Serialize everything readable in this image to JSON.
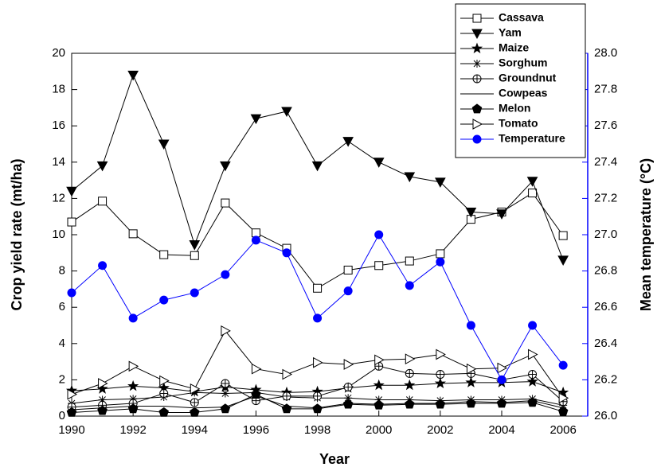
{
  "chart_data": {
    "type": "line",
    "x_label": "Year",
    "y_label": "Crop yield rate (mt/ha)",
    "y2_label": "Mean temperature (°C)",
    "x": [
      1990,
      1991,
      1992,
      1993,
      1994,
      1995,
      1996,
      1997,
      1998,
      1999,
      2000,
      2001,
      2002,
      2003,
      2004,
      2005,
      2006
    ],
    "xlim": [
      1990,
      2006.8
    ],
    "xticks": [
      1990,
      1992,
      1994,
      1996,
      1998,
      2000,
      2002,
      2004,
      2006
    ],
    "ylim": [
      0,
      20
    ],
    "yticks": [
      0,
      2,
      4,
      6,
      8,
      10,
      12,
      14,
      16,
      18,
      20
    ],
    "y2lim": [
      26.0,
      28.0
    ],
    "y2ticks": [
      {
        "value": 26.0,
        "label": "26.0"
      },
      {
        "value": 26.2,
        "label": "26.2"
      },
      {
        "value": 26.4,
        "label": "26.4"
      },
      {
        "value": 26.6,
        "label": "26.6"
      },
      {
        "value": 26.8,
        "label": "26.8"
      },
      {
        "value": 27.0,
        "label": "27.0"
      },
      {
        "value": 27.2,
        "label": "27.2"
      },
      {
        "value": 27.4,
        "label": "27.4"
      },
      {
        "value": 27.6,
        "label": "27.6"
      },
      {
        "value": 27.8,
        "label": "27.8"
      },
      {
        "value": 28.0,
        "label": "28.0"
      }
    ],
    "y2_color": "#0000ff",
    "legend": "top-right",
    "series": [
      {
        "name": "Cassava",
        "color": "#000000",
        "marker": "square",
        "values": [
          10.7,
          11.85,
          10.05,
          8.9,
          8.85,
          11.75,
          10.1,
          9.25,
          7.05,
          8.05,
          8.3,
          8.55,
          8.95,
          10.85,
          11.25,
          12.3,
          9.95
        ]
      },
      {
        "name": "Yam",
        "color": "#000000",
        "marker": "triangle-down",
        "values": [
          12.4,
          13.8,
          18.8,
          15.0,
          9.45,
          13.8,
          16.4,
          16.8,
          13.8,
          15.15,
          14.0,
          13.2,
          12.9,
          11.25,
          11.15,
          12.95,
          8.6
        ]
      },
      {
        "name": "Maize",
        "color": "#000000",
        "marker": "star",
        "values": [
          1.4,
          1.5,
          1.65,
          1.55,
          1.35,
          1.6,
          1.45,
          1.3,
          1.35,
          1.55,
          1.7,
          1.7,
          1.8,
          1.85,
          1.85,
          1.9,
          1.3
        ]
      },
      {
        "name": "Sorghum",
        "color": "#000000",
        "marker": "asterisk",
        "values": [
          0.7,
          0.9,
          0.95,
          1.05,
          1.3,
          1.25,
          1.3,
          1.05,
          1.0,
          1.0,
          0.9,
          0.9,
          0.85,
          0.9,
          0.9,
          0.95,
          0.6
        ]
      },
      {
        "name": "Groundnut",
        "color": "#000000",
        "marker": "circle-plus",
        "values": [
          0.5,
          0.6,
          0.7,
          1.25,
          0.75,
          1.8,
          0.85,
          1.1,
          1.1,
          1.6,
          2.75,
          2.35,
          2.3,
          2.35,
          2.0,
          2.3,
          0.8
        ]
      },
      {
        "name": "Cowpeas",
        "color": "#000000",
        "marker": "none",
        "values": [
          0.35,
          0.45,
          0.55,
          0.55,
          0.45,
          0.5,
          1.1,
          0.55,
          0.45,
          0.7,
          0.65,
          0.7,
          0.7,
          0.8,
          0.75,
          0.85,
          0.45
        ]
      },
      {
        "name": "Melon",
        "color": "#000000",
        "marker": "pentagon",
        "values": [
          0.2,
          0.3,
          0.4,
          0.2,
          0.2,
          0.4,
          1.2,
          0.4,
          0.4,
          0.65,
          0.6,
          0.65,
          0.65,
          0.7,
          0.7,
          0.75,
          0.25
        ]
      },
      {
        "name": "Tomato",
        "color": "#000000",
        "marker": "triangle-right",
        "values": [
          1.2,
          1.8,
          2.75,
          1.95,
          1.5,
          4.7,
          2.6,
          2.3,
          2.95,
          2.85,
          3.1,
          3.15,
          3.4,
          2.6,
          2.65,
          3.4,
          1.0
        ]
      },
      {
        "name": "Temperature",
        "color": "#0000ff",
        "marker": "circle",
        "axis": "y2",
        "values": [
          26.68,
          26.83,
          26.54,
          26.64,
          26.68,
          26.78,
          26.97,
          26.9,
          26.54,
          26.69,
          27.0,
          26.72,
          26.85,
          26.5,
          26.2,
          26.5,
          26.28
        ]
      }
    ]
  }
}
